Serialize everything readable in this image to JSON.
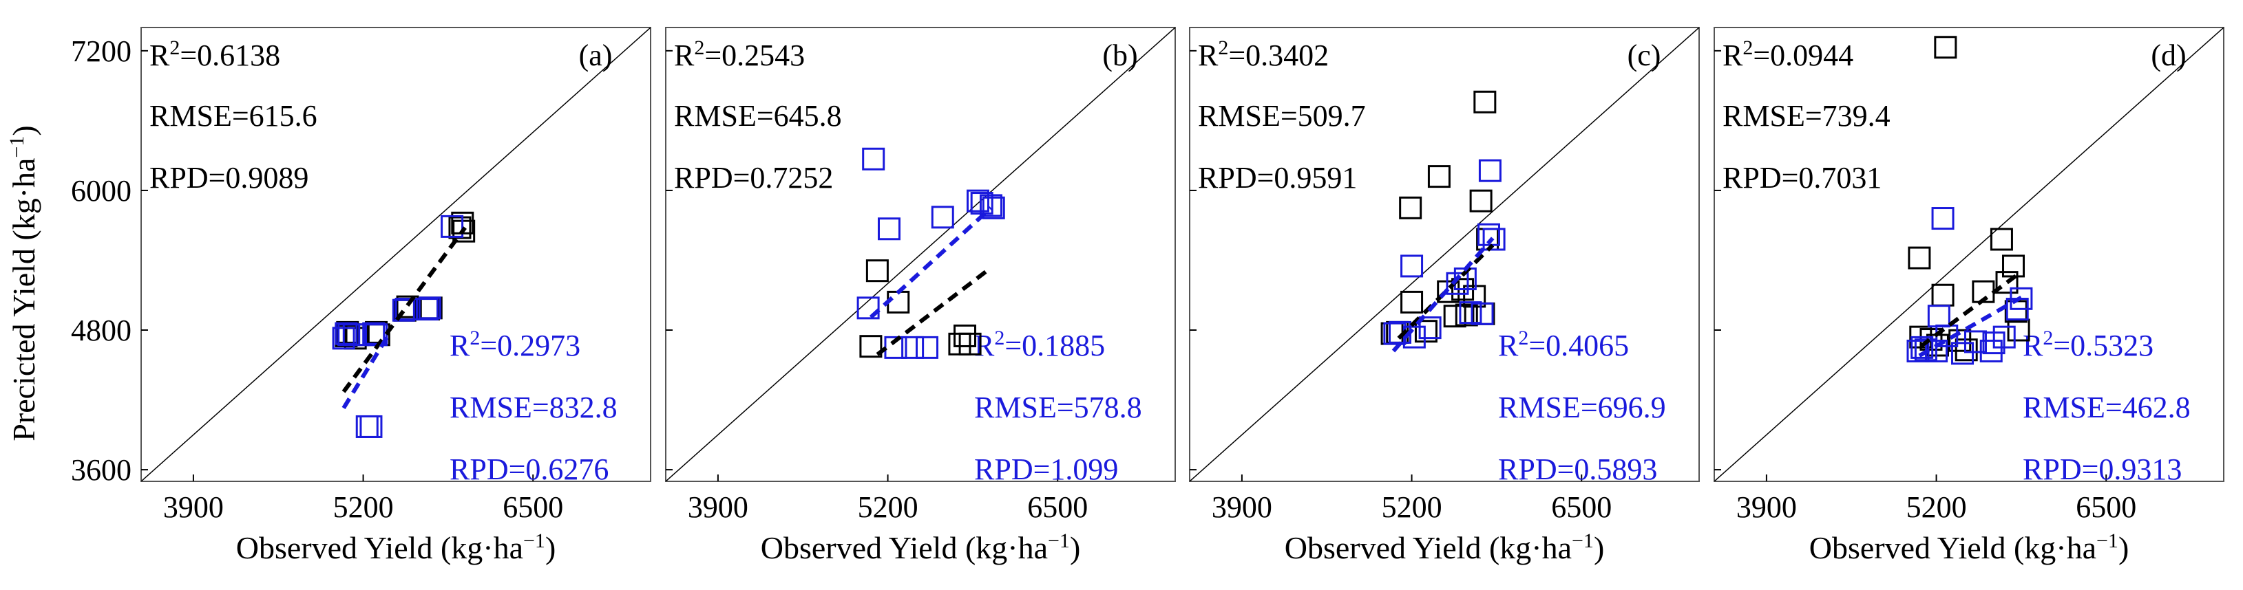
{
  "chart_data": {
    "type": "scatter",
    "x_axis_label": "Observed Yield (kg·ha",
    "x_axis_label_sup": "−1",
    "x_axis_label_end": ")",
    "y_axis_label": "Precicted Yield (kg·ha",
    "y_axis_label_sup": "−1",
    "y_axis_label_end": ")",
    "xlim": [
      3500,
      7400
    ],
    "ylim": [
      3500,
      7400
    ],
    "x_ticks": [
      3900,
      5200,
      6500
    ],
    "y_ticks": [
      3600,
      4800,
      6000,
      7200
    ],
    "series_colors": {
      "calibration": "#000000",
      "validation": "#1a1adc"
    },
    "panels": [
      {
        "label": "(a)",
        "black_stats": [
          "R",
          "=0.6138",
          "RMSE=615.6",
          "RPD=0.9089"
        ],
        "blue_stats": [
          "R",
          "=0.2973",
          "RMSE=832.8",
          "RPD=0.6276"
        ],
        "calibration": [
          [
            5070,
            4750
          ],
          [
            5080,
            4780
          ],
          [
            5140,
            4730
          ],
          [
            5150,
            4760
          ],
          [
            5300,
            4780
          ],
          [
            5320,
            4760
          ],
          [
            5520,
            4970
          ],
          [
            5540,
            5000
          ],
          [
            5700,
            4980
          ],
          [
            5720,
            4990
          ],
          [
            5940,
            5680
          ],
          [
            5960,
            5720
          ],
          [
            5970,
            5650
          ]
        ],
        "validation": [
          [
            5050,
            4730
          ],
          [
            5070,
            4770
          ],
          [
            5090,
            4760
          ],
          [
            5130,
            4760
          ],
          [
            5280,
            4770
          ],
          [
            5300,
            4760
          ],
          [
            5510,
            4970
          ],
          [
            5530,
            4980
          ],
          [
            5690,
            4980
          ],
          [
            5710,
            4990
          ],
          [
            5880,
            5690
          ],
          [
            5230,
            3970
          ],
          [
            5260,
            3970
          ]
        ],
        "black_fit": [
          [
            5050,
            4270
          ],
          [
            5980,
            5680
          ]
        ],
        "blue_fit": [
          [
            5050,
            4130
          ],
          [
            5400,
            4770
          ]
        ]
      },
      {
        "label": "(b)",
        "black_stats": [
          "R",
          "=0.2543",
          "RMSE=645.8",
          "RPD=0.7252"
        ],
        "blue_stats": [
          "R",
          "=0.1885",
          "RMSE=578.8",
          "RPD=1.099"
        ],
        "calibration": [
          [
            5070,
            4660
          ],
          [
            5120,
            5310
          ],
          [
            5280,
            5040
          ],
          [
            5750,
            4680
          ],
          [
            5790,
            4750
          ],
          [
            5830,
            4680
          ]
        ],
        "validation": [
          [
            5090,
            6270
          ],
          [
            5050,
            4990
          ],
          [
            5210,
            5670
          ],
          [
            5260,
            4650
          ],
          [
            5390,
            4650
          ],
          [
            5500,
            4650
          ],
          [
            5620,
            5770
          ],
          [
            5890,
            5910
          ],
          [
            5920,
            5890
          ],
          [
            5990,
            5870
          ],
          [
            6010,
            5850
          ]
        ],
        "black_fit": [
          [
            5120,
            4590
          ],
          [
            5960,
            5310
          ]
        ],
        "blue_fit": [
          [
            5070,
            4910
          ],
          [
            5990,
            5850
          ]
        ]
      },
      {
        "label": "(c)",
        "black_stats": [
          "R",
          "=0.3402",
          "RMSE=509.7",
          "RPD=0.9591"
        ],
        "blue_stats": [
          "R",
          "=0.4065",
          "RMSE=696.9",
          "RPD=0.5893"
        ],
        "calibration": [
          [
            5050,
            4770
          ],
          [
            5090,
            4780
          ],
          [
            5190,
            5850
          ],
          [
            5200,
            5040
          ],
          [
            5310,
            4790
          ],
          [
            5410,
            6120
          ],
          [
            5480,
            5130
          ],
          [
            5530,
            4920
          ],
          [
            5590,
            5150
          ],
          [
            5620,
            4930
          ],
          [
            5680,
            5090
          ],
          [
            5730,
            5910
          ],
          [
            5750,
            4940
          ],
          [
            5780,
            5580
          ],
          [
            5760,
            6760
          ]
        ],
        "validation": [
          [
            5070,
            4770
          ],
          [
            5110,
            4780
          ],
          [
            5200,
            5350
          ],
          [
            5220,
            4740
          ],
          [
            5340,
            4820
          ],
          [
            5550,
            5200
          ],
          [
            5610,
            5240
          ],
          [
            5650,
            4950
          ],
          [
            5740,
            4940
          ],
          [
            5790,
            5620
          ],
          [
            5800,
            6170
          ],
          [
            5830,
            5580
          ]
        ],
        "black_fit": [
          [
            5100,
            4730
          ],
          [
            5820,
            5530
          ]
        ],
        "blue_fit": [
          [
            5060,
            4620
          ],
          [
            5820,
            5590
          ]
        ]
      },
      {
        "label": "(d)",
        "black_stats": [
          "R",
          "=0.0944",
          "RMSE=739.4",
          "RPD=0.7031"
        ],
        "blue_stats": [
          "R",
          "=0.5323",
          "RMSE=462.8",
          "RPD=0.9313"
        ],
        "calibration": [
          [
            5070,
            5420
          ],
          [
            5080,
            4740
          ],
          [
            5160,
            4720
          ],
          [
            5210,
            4670
          ],
          [
            5250,
            5100
          ],
          [
            5270,
            7230
          ],
          [
            5380,
            4710
          ],
          [
            5430,
            4630
          ],
          [
            5560,
            5130
          ],
          [
            5700,
            5580
          ],
          [
            5740,
            5210
          ],
          [
            5790,
            5350
          ],
          [
            5810,
            4960
          ],
          [
            5830,
            4800
          ]
        ],
        "validation": [
          [
            5060,
            4620
          ],
          [
            5090,
            4650
          ],
          [
            5120,
            4630
          ],
          [
            5200,
            4620
          ],
          [
            5220,
            4920
          ],
          [
            5250,
            5760
          ],
          [
            5280,
            4750
          ],
          [
            5400,
            4600
          ],
          [
            5500,
            4700
          ],
          [
            5620,
            4620
          ],
          [
            5640,
            4690
          ],
          [
            5720,
            4740
          ],
          [
            5850,
            5070
          ],
          [
            5820,
            4980
          ]
        ],
        "black_fit": [
          [
            5080,
            4660
          ],
          [
            5850,
            5300
          ]
        ],
        "blue_fit": [
          [
            5070,
            4580
          ],
          [
            5850,
            5080
          ]
        ]
      }
    ]
  }
}
